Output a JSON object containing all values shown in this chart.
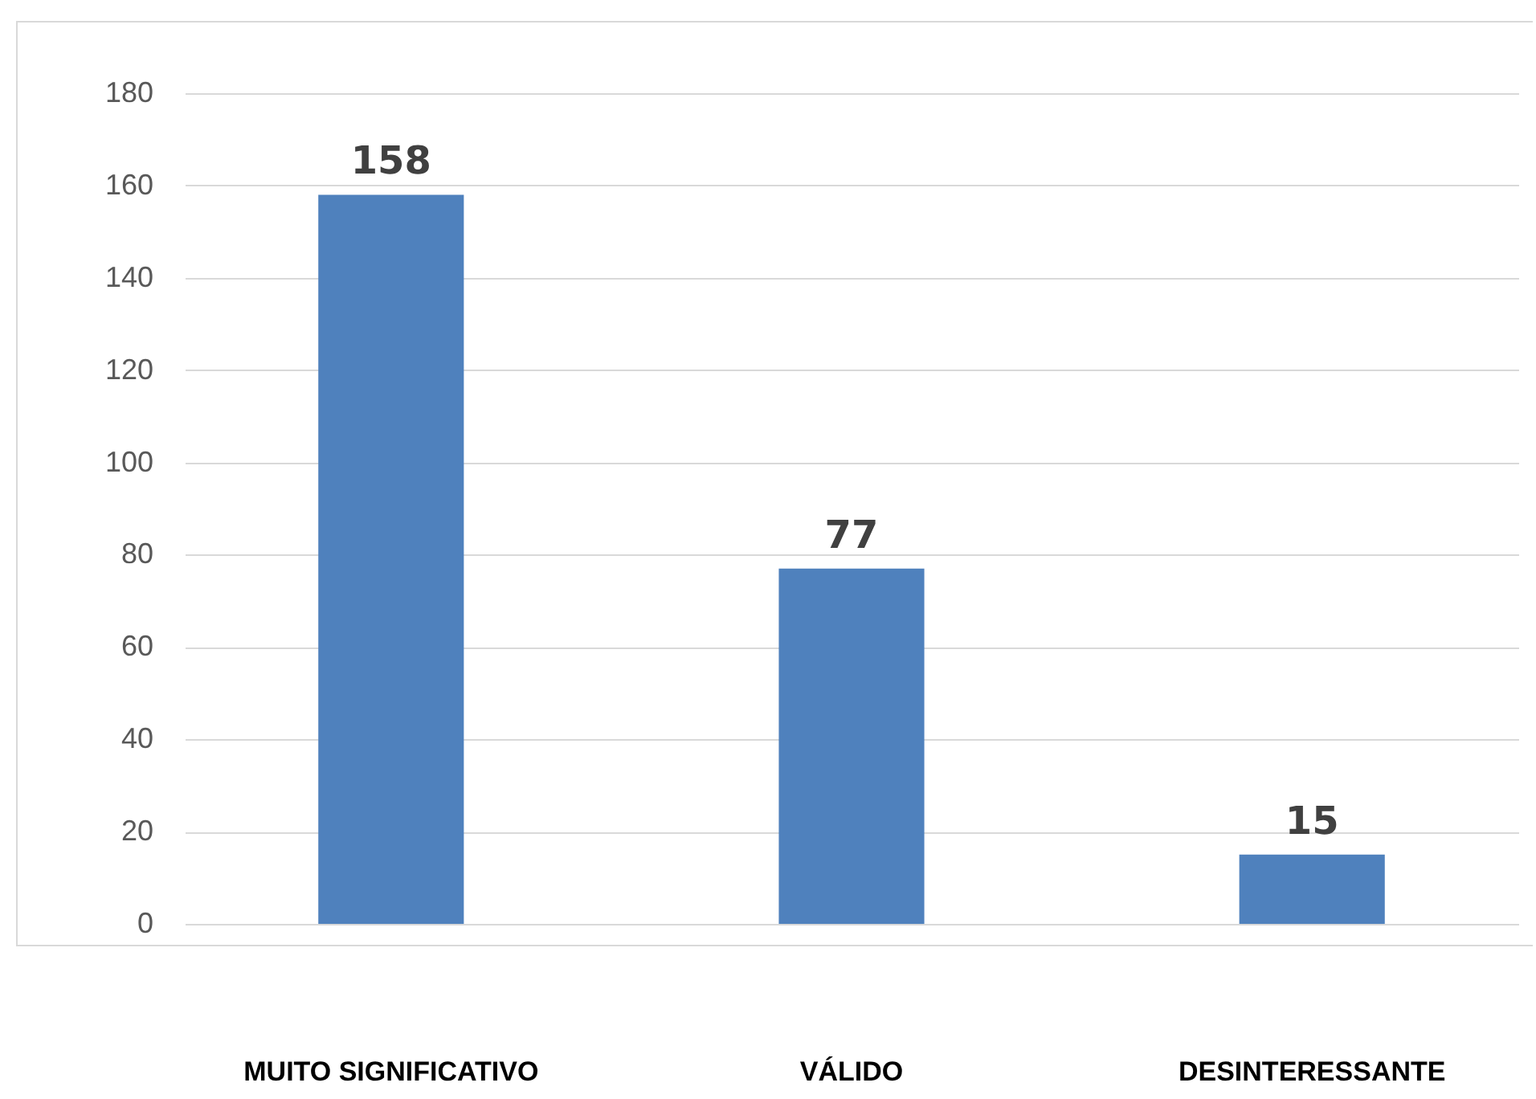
{
  "chart_data": {
    "type": "bar",
    "categories": [
      "MUITO SIGNIFICATIVO",
      "VÁLIDO",
      "DESINTERESSANTE"
    ],
    "values": [
      158,
      77,
      15
    ],
    "color": "#4f81bd",
    "ylim": [
      0,
      180
    ],
    "yticks": [
      0,
      20,
      40,
      60,
      80,
      100,
      120,
      140,
      160,
      180
    ],
    "grid": "y",
    "data_labels": true
  }
}
